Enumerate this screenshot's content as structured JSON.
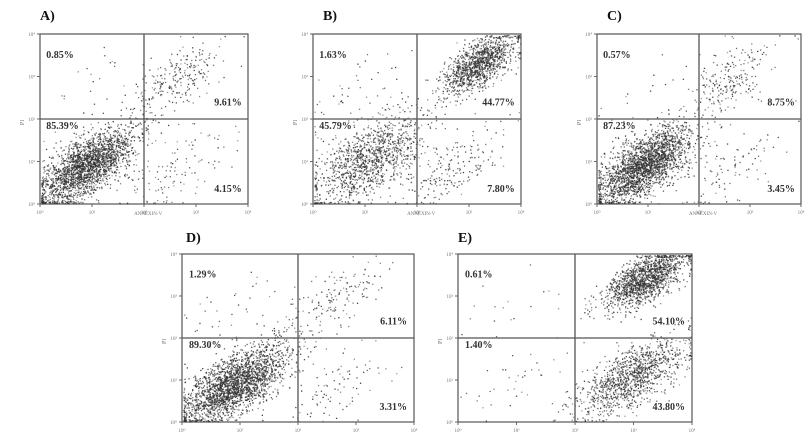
{
  "figure": {
    "panels": [
      {
        "letter": "A)",
        "ylabel": "PI",
        "xlabel": "ANNEXIN-V",
        "tick_labels": [
          "10⁰",
          "10¹",
          "10²",
          "10³",
          "10⁴"
        ]
      },
      {
        "letter": "B)",
        "ylabel": "PI",
        "xlabel": "ANNEXIN-V",
        "tick_labels": [
          "10⁰",
          "10¹",
          "10²",
          "10³",
          "10⁴"
        ]
      },
      {
        "letter": "C)",
        "ylabel": "PI",
        "xlabel": "ANNEXIN-V",
        "tick_labels": [
          "10⁰",
          "10¹",
          "10²",
          "10³",
          "10⁴"
        ]
      },
      {
        "letter": "D)",
        "ylabel": "PI",
        "xlabel": "",
        "tick_labels": [
          "10⁰",
          "10¹",
          "10²",
          "10³",
          "10⁴"
        ]
      },
      {
        "letter": "E)",
        "ylabel": "PI",
        "xlabel": "",
        "tick_labels": [
          "10⁰",
          "10¹",
          "10²",
          "10³",
          "10⁴"
        ]
      }
    ]
  },
  "chart_data": [
    {
      "type": "scatter",
      "panel": "A)",
      "xlabel": "ANNEXIN-V",
      "ylabel": "PI",
      "xlim": [
        1,
        10000
      ],
      "ylim": [
        1,
        10000
      ],
      "x_scale": "log",
      "y_scale": "log",
      "quadrant_gate": {
        "x": 100,
        "y": 100
      },
      "quadrants": {
        "upper_left": "0.85%",
        "upper_right": "9.61%",
        "lower_left": "85.39%",
        "lower_right": "4.15%"
      },
      "populations": [
        {
          "x": 8,
          "y": 8,
          "share": 0.8539,
          "spread": 0.45
        },
        {
          "x": 400,
          "y": 800,
          "share": 0.0961,
          "spread": 0.45
        },
        {
          "x": 400,
          "y": 6,
          "share": 0.0415,
          "spread": 0.5
        },
        {
          "x": 6,
          "y": 400,
          "share": 0.0085,
          "spread": 0.5
        }
      ]
    },
    {
      "type": "scatter",
      "panel": "B)",
      "xlabel": "ANNEXIN-V",
      "ylabel": "PI",
      "xlim": [
        1,
        10000
      ],
      "ylim": [
        1,
        10000
      ],
      "x_scale": "log",
      "y_scale": "log",
      "quadrant_gate": {
        "x": 100,
        "y": 100
      },
      "quadrants": {
        "upper_left": "1.63%",
        "upper_right": "44.77%",
        "lower_left": "45.79%",
        "lower_right": "7.80%"
      },
      "populations": [
        {
          "x": 12,
          "y": 12,
          "share": 0.4579,
          "spread": 0.55
        },
        {
          "x": 1500,
          "y": 2000,
          "share": 0.4477,
          "spread": 0.35
        },
        {
          "x": 400,
          "y": 6,
          "share": 0.078,
          "spread": 0.5
        },
        {
          "x": 6,
          "y": 400,
          "share": 0.0163,
          "spread": 0.5
        }
      ]
    },
    {
      "type": "scatter",
      "panel": "C)",
      "xlabel": "ANNEXIN-V",
      "ylabel": "PI",
      "xlim": [
        1,
        10000
      ],
      "ylim": [
        1,
        10000
      ],
      "x_scale": "log",
      "y_scale": "log",
      "quadrant_gate": {
        "x": 100,
        "y": 100
      },
      "quadrants": {
        "upper_left": "0.57%",
        "upper_right": "8.75%",
        "lower_left": "87.23%",
        "lower_right": "3.45%"
      },
      "populations": [
        {
          "x": 8,
          "y": 8,
          "share": 0.8723,
          "spread": 0.45
        },
        {
          "x": 400,
          "y": 800,
          "share": 0.0875,
          "spread": 0.45
        },
        {
          "x": 400,
          "y": 6,
          "share": 0.0345,
          "spread": 0.5
        },
        {
          "x": 6,
          "y": 400,
          "share": 0.0057,
          "spread": 0.5
        }
      ]
    },
    {
      "type": "scatter",
      "panel": "D)",
      "xlabel": "",
      "ylabel": "PI",
      "xlim": [
        1,
        10000
      ],
      "ylim": [
        1,
        10000
      ],
      "x_scale": "log",
      "y_scale": "log",
      "quadrant_gate": {
        "x": 100,
        "y": 100
      },
      "quadrants": {
        "upper_left": "1.29%",
        "upper_right": "6.11%",
        "lower_left": "89.30%",
        "lower_right": "3.31%"
      },
      "populations": [
        {
          "x": 8,
          "y": 8,
          "share": 0.893,
          "spread": 0.45
        },
        {
          "x": 400,
          "y": 800,
          "share": 0.0611,
          "spread": 0.45
        },
        {
          "x": 400,
          "y": 6,
          "share": 0.0331,
          "spread": 0.5
        },
        {
          "x": 6,
          "y": 400,
          "share": 0.0129,
          "spread": 0.5
        }
      ]
    },
    {
      "type": "scatter",
      "panel": "E)",
      "xlabel": "",
      "ylabel": "PI",
      "xlim": [
        1,
        10000
      ],
      "ylim": [
        1,
        10000
      ],
      "x_scale": "log",
      "y_scale": "log",
      "quadrant_gate": {
        "x": 100,
        "y": 100
      },
      "quadrants": {
        "upper_left": "0.61%",
        "upper_right": "54.10%",
        "lower_left": "1.40%",
        "lower_right": "43.80%"
      },
      "populations": [
        {
          "x": 1500,
          "y": 2500,
          "share": 0.541,
          "spread": 0.35
        },
        {
          "x": 900,
          "y": 12,
          "share": 0.438,
          "spread": 0.45
        },
        {
          "x": 12,
          "y": 12,
          "share": 0.014,
          "spread": 0.5
        },
        {
          "x": 6,
          "y": 400,
          "share": 0.0061,
          "spread": 0.5
        }
      ]
    }
  ]
}
